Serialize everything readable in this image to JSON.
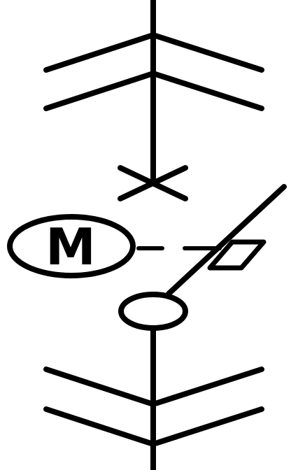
{
  "motor": {
    "label": "M"
  },
  "colors": {
    "line": "#000000",
    "background": "#ffffff"
  }
}
